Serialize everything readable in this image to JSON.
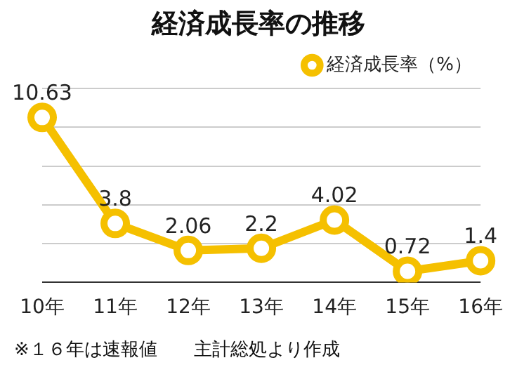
{
  "chart_data": {
    "type": "line",
    "title": "経済成長率の推移",
    "categories": [
      "10年",
      "11年",
      "12年",
      "13年",
      "14年",
      "15年",
      "16年"
    ],
    "series": [
      {
        "name": "経済成長率（%）",
        "color": "#f5c000",
        "values": [
          10.63,
          3.8,
          2.06,
          2.2,
          4.02,
          0.72,
          1.4
        ]
      }
    ],
    "ylim": [
      0,
      12.5
    ],
    "yticks": [
      {
        "value": 0,
        "label": null
      },
      {
        "value": 2.5,
        "label": null
      },
      {
        "value": 5,
        "label": null
      },
      {
        "value": 7.5,
        "label": null
      },
      {
        "value": 10,
        "label": null
      },
      {
        "value": 12.5,
        "label": null
      }
    ],
    "tick_labels": "x",
    "grid": "y",
    "legend": "top right",
    "marker": "circle",
    "line_style": "solid",
    "data_labels": true,
    "annotations": [
      "※１６年は速報値　　主計総処より作成"
    ]
  }
}
